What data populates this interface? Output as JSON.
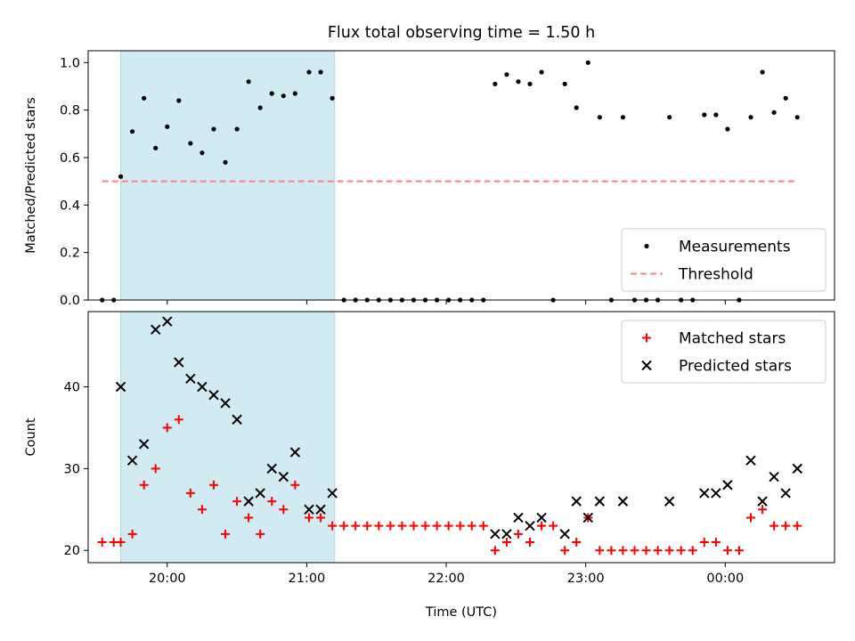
{
  "chart_data": [
    {
      "type": "scatter",
      "title": "Flux total observing time = 1.50 h",
      "ylabel": "Matched/Predicted stars",
      "xlabel": "",
      "x_unit": "time (UTC), clock time; values past 24:00 continue into the next day",
      "xlim": [
        "19:26",
        "00:47"
      ],
      "ylim": [
        0,
        1.05
      ],
      "x_ticks": [
        "20:00",
        "21:00",
        "22:00",
        "23:00",
        "00:00"
      ],
      "y_ticks": [
        "0.0",
        "0.2",
        "0.4",
        "0.6",
        "0.8",
        "1.0"
      ],
      "shaded_interval": [
        "19:40",
        "21:12"
      ],
      "shade_color": "#add8e6",
      "legend_position": "lower-right",
      "series": [
        {
          "name": "Measurements",
          "kind": "point",
          "color": "#000000",
          "points": [
            [
              "19:32",
              0.0
            ],
            [
              "19:37",
              0.0
            ],
            [
              "19:40",
              0.52
            ],
            [
              "19:45",
              0.71
            ],
            [
              "19:50",
              0.85
            ],
            [
              "19:55",
              0.64
            ],
            [
              "20:00",
              0.73
            ],
            [
              "20:05",
              0.84
            ],
            [
              "20:10",
              0.66
            ],
            [
              "20:15",
              0.62
            ],
            [
              "20:20",
              0.72
            ],
            [
              "20:25",
              0.58
            ],
            [
              "20:30",
              0.72
            ],
            [
              "20:35",
              0.92
            ],
            [
              "20:40",
              0.81
            ],
            [
              "20:45",
              0.87
            ],
            [
              "20:50",
              0.86
            ],
            [
              "20:55",
              0.87
            ],
            [
              "21:01",
              0.96
            ],
            [
              "21:06",
              0.96
            ],
            [
              "21:11",
              0.85
            ],
            [
              "21:16",
              0.0
            ],
            [
              "21:21",
              0.0
            ],
            [
              "21:26",
              0.0
            ],
            [
              "21:31",
              0.0
            ],
            [
              "21:36",
              0.0
            ],
            [
              "21:41",
              0.0
            ],
            [
              "21:46",
              0.0
            ],
            [
              "21:51",
              0.0
            ],
            [
              "21:56",
              0.0
            ],
            [
              "22:01",
              0.0
            ],
            [
              "22:06",
              0.0
            ],
            [
              "22:11",
              0.0
            ],
            [
              "22:16",
              0.0
            ],
            [
              "22:21",
              0.91
            ],
            [
              "22:26",
              0.95
            ],
            [
              "22:31",
              0.92
            ],
            [
              "22:36",
              0.91
            ],
            [
              "22:41",
              0.96
            ],
            [
              "22:46",
              0.0
            ],
            [
              "22:51",
              0.91
            ],
            [
              "22:56",
              0.81
            ],
            [
              "23:01",
              1.0
            ],
            [
              "23:06",
              0.77
            ],
            [
              "23:11",
              0.0
            ],
            [
              "23:16",
              0.77
            ],
            [
              "23:21",
              0.0
            ],
            [
              "23:26",
              0.0
            ],
            [
              "23:31",
              0.0
            ],
            [
              "23:36",
              0.77
            ],
            [
              "23:41",
              0.0
            ],
            [
              "23:46",
              0.0
            ],
            [
              "23:51",
              0.78
            ],
            [
              "23:56",
              0.78
            ],
            [
              "24:01",
              0.72
            ],
            [
              "24:06",
              0.0
            ],
            [
              "24:11",
              0.77
            ],
            [
              "24:16",
              0.96
            ],
            [
              "24:21",
              0.79
            ],
            [
              "24:26",
              0.85
            ],
            [
              "24:31",
              0.77
            ]
          ]
        },
        {
          "name": "Threshold",
          "kind": "dashed-line",
          "color": "#ff8080",
          "points": [
            [
              "19:32",
              0.5
            ],
            [
              "24:31",
              0.5
            ]
          ]
        }
      ]
    },
    {
      "type": "scatter",
      "title": "",
      "ylabel": "Count",
      "xlabel": "Time (UTC)",
      "xlim": [
        "19:26",
        "00:47"
      ],
      "ylim": [
        18.5,
        49.2
      ],
      "x_ticks": [
        "20:00",
        "21:00",
        "22:00",
        "23:00",
        "00:00"
      ],
      "y_ticks": [
        "20",
        "30",
        "40"
      ],
      "shaded_interval": [
        "19:40",
        "21:12"
      ],
      "shade_color": "#add8e6",
      "legend_position": "upper-right",
      "series": [
        {
          "name": "Matched stars",
          "kind": "plus",
          "color": "#ff0000",
          "points": [
            [
              "19:32",
              21
            ],
            [
              "19:37",
              21
            ],
            [
              "19:40",
              21
            ],
            [
              "19:45",
              22
            ],
            [
              "19:50",
              28
            ],
            [
              "19:55",
              30
            ],
            [
              "20:00",
              35
            ],
            [
              "20:05",
              36
            ],
            [
              "20:10",
              27
            ],
            [
              "20:15",
              25
            ],
            [
              "20:20",
              28
            ],
            [
              "20:25",
              22
            ],
            [
              "20:30",
              26
            ],
            [
              "20:35",
              24
            ],
            [
              "20:40",
              22
            ],
            [
              "20:45",
              26
            ],
            [
              "20:50",
              25
            ],
            [
              "20:55",
              28
            ],
            [
              "21:01",
              24
            ],
            [
              "21:06",
              24
            ],
            [
              "21:11",
              23
            ],
            [
              "21:16",
              23
            ],
            [
              "21:21",
              23
            ],
            [
              "21:26",
              23
            ],
            [
              "21:31",
              23
            ],
            [
              "21:36",
              23
            ],
            [
              "21:41",
              23
            ],
            [
              "21:46",
              23
            ],
            [
              "21:51",
              23
            ],
            [
              "21:56",
              23
            ],
            [
              "22:01",
              23
            ],
            [
              "22:06",
              23
            ],
            [
              "22:11",
              23
            ],
            [
              "22:16",
              23
            ],
            [
              "22:21",
              20
            ],
            [
              "22:26",
              21
            ],
            [
              "22:31",
              22
            ],
            [
              "22:36",
              21
            ],
            [
              "22:41",
              23
            ],
            [
              "22:46",
              23
            ],
            [
              "22:51",
              20
            ],
            [
              "22:56",
              21
            ],
            [
              "23:01",
              24
            ],
            [
              "23:06",
              20
            ],
            [
              "23:11",
              20
            ],
            [
              "23:16",
              20
            ],
            [
              "23:21",
              20
            ],
            [
              "23:26",
              20
            ],
            [
              "23:31",
              20
            ],
            [
              "23:36",
              20
            ],
            [
              "23:41",
              20
            ],
            [
              "23:46",
              20
            ],
            [
              "23:51",
              21
            ],
            [
              "23:56",
              21
            ],
            [
              "24:01",
              20
            ],
            [
              "24:06",
              20
            ],
            [
              "24:11",
              24
            ],
            [
              "24:16",
              25
            ],
            [
              "24:21",
              23
            ],
            [
              "24:26",
              23
            ],
            [
              "24:31",
              23
            ]
          ]
        },
        {
          "name": "Predicted stars",
          "kind": "x",
          "color": "#000000",
          "points": [
            [
              "19:40",
              40
            ],
            [
              "19:45",
              31
            ],
            [
              "19:50",
              33
            ],
            [
              "19:55",
              47
            ],
            [
              "20:00",
              48
            ],
            [
              "20:05",
              43
            ],
            [
              "20:10",
              41
            ],
            [
              "20:15",
              40
            ],
            [
              "20:20",
              39
            ],
            [
              "20:25",
              38
            ],
            [
              "20:30",
              36
            ],
            [
              "20:35",
              26
            ],
            [
              "20:40",
              27
            ],
            [
              "20:45",
              30
            ],
            [
              "20:50",
              29
            ],
            [
              "20:55",
              32
            ],
            [
              "21:01",
              25
            ],
            [
              "21:06",
              25
            ],
            [
              "21:11",
              27
            ],
            [
              "22:21",
              22
            ],
            [
              "22:26",
              22
            ],
            [
              "22:31",
              24
            ],
            [
              "22:36",
              23
            ],
            [
              "22:41",
              24
            ],
            [
              "22:51",
              22
            ],
            [
              "22:56",
              26
            ],
            [
              "23:01",
              24
            ],
            [
              "23:06",
              26
            ],
            [
              "23:16",
              26
            ],
            [
              "23:36",
              26
            ],
            [
              "23:51",
              27
            ],
            [
              "23:56",
              27
            ],
            [
              "24:01",
              28
            ],
            [
              "24:11",
              31
            ],
            [
              "24:16",
              26
            ],
            [
              "24:21",
              29
            ],
            [
              "24:26",
              27
            ],
            [
              "24:31",
              30
            ]
          ]
        }
      ]
    }
  ]
}
